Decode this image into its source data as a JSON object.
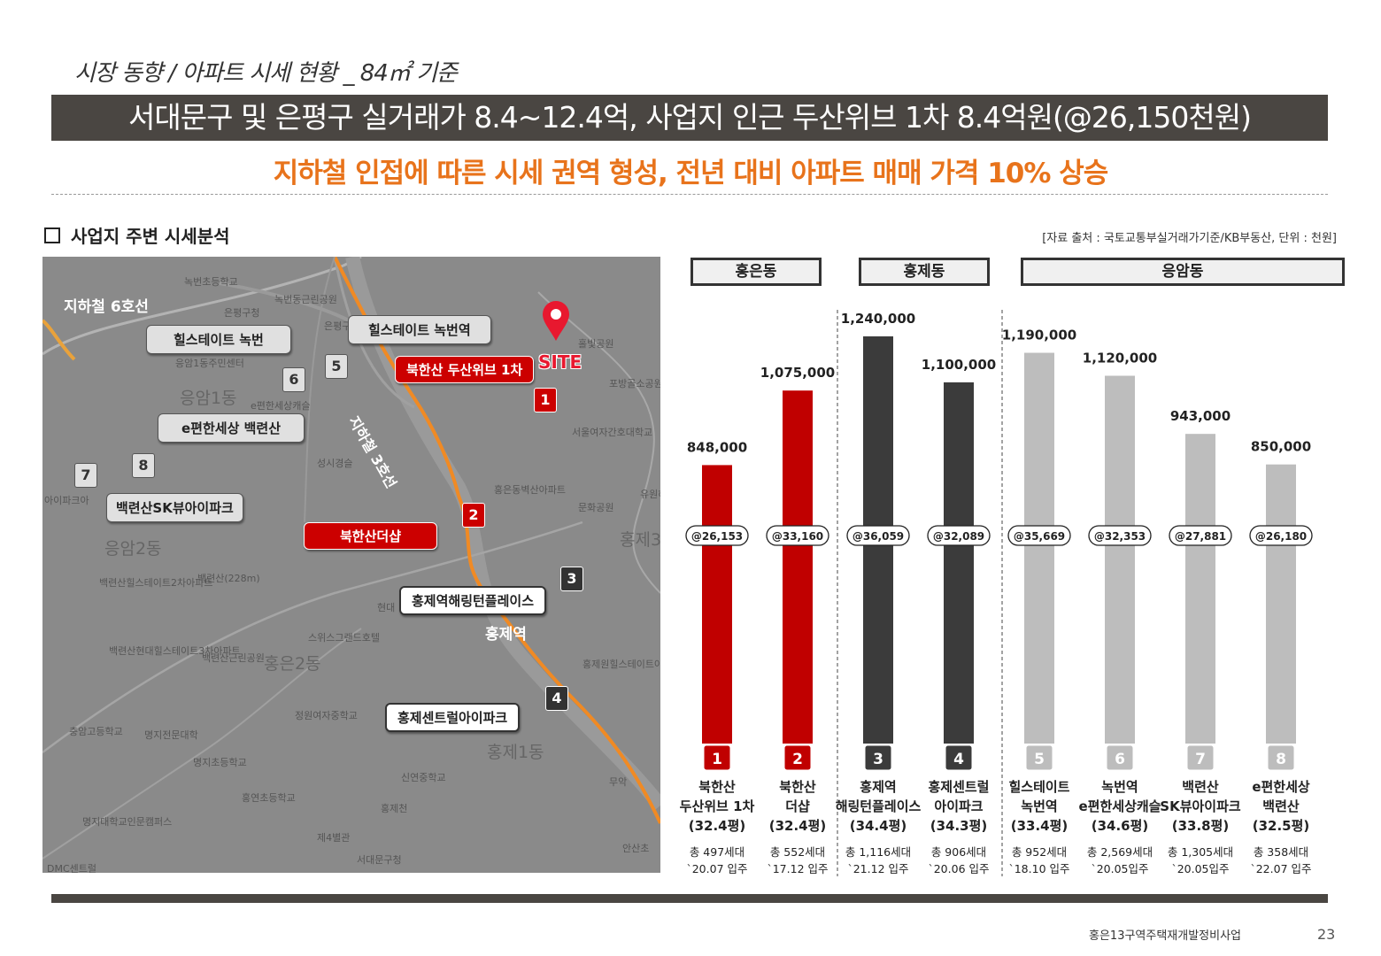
{
  "header": {
    "section": "시장 동향 / 아파트 시세 현황 _ 84㎡ 기준",
    "title": "서대문구 및 은평구 실거래가 8.4~12.4억, 사업지 인근 두산위브 1차 8.4억원(@26,150천원)",
    "subtitle": "지하철 인접에 따른 시세 권역 형성, 전년 대비 아파트 매매 가격 10% 상승"
  },
  "section_heading": "사업지 주변 시세분석",
  "source_note": "[자료 출처 : 국토교통부실거래가기준/KB부동산, 단위 : 천원]",
  "map": {
    "line6": "지하철 6호선",
    "line3": "지하철 3호선",
    "site": "SITE",
    "station": "홍제역",
    "callouts": {
      "c1": "북한산 두산위브 1차",
      "c2": "북한산더샵",
      "c3": "홍제역해링턴플레이스",
      "c4": "홍제센트럴아이파크",
      "c5": "힐스테이트 녹번역",
      "c6": "힐스테이트 녹번",
      "c7": "백련산SK뷰아이파크",
      "c8": "e편한세상 백련산"
    },
    "districts": [
      "응암1동",
      "응암2동",
      "홍은2동",
      "홍제1동",
      "홍제3"
    ],
    "labels": [
      "녹번초등학교",
      "은평구청",
      "녹번동근린공원",
      "은평구청앞",
      "응암1동주민센터",
      "e편한세상캐슬",
      "성시경슬",
      "백련산(228m)",
      "백련산힐스테이트2차아파트",
      "백련산현대힐스테이트3차아파트",
      "백련산근린공원",
      "정원여자중학교",
      "명지전문대학",
      "명지초등학교",
      "홍연초등학교",
      "신연중학교",
      "명지대학교인문캠퍼스",
      "제4별관",
      "서대문구청",
      "DMC센트럴",
      "충암고등학교",
      "스위스그랜드호텔",
      "홍제원힐스테이트아파트",
      "홍은동벽산아파트",
      "문화공원",
      "서울여자간호대학교",
      "포방골소공원",
      "홀빛공원",
      "홍제천",
      "안산초",
      "무악",
      "유원하",
      "아이파크아",
      "현대"
    ]
  },
  "chart_data": {
    "type": "bar",
    "unit": "천원",
    "groups": [
      {
        "name": "홍은동",
        "indices": [
          0,
          1
        ]
      },
      {
        "name": "홍제동",
        "indices": [
          2,
          3
        ]
      },
      {
        "name": "응암동",
        "indices": [
          4,
          5,
          6,
          7
        ]
      }
    ],
    "items": [
      {
        "no": "1",
        "name_lines": [
          "북한산",
          "두산위브 1차"
        ],
        "area": "(32.4평)",
        "households": "총 497세대",
        "move_in": "`20.07 입주",
        "value": 848000,
        "value_label": "848,000",
        "unit_price": "@26,153",
        "color": "#c00000"
      },
      {
        "no": "2",
        "name_lines": [
          "북한산",
          "더샵"
        ],
        "area": "(32.4평)",
        "households": "총 552세대",
        "move_in": "`17.12 입주",
        "value": 1075000,
        "value_label": "1,075,000",
        "unit_price": "@33,160",
        "color": "#c00000"
      },
      {
        "no": "3",
        "name_lines": [
          "홍제역",
          "해링턴플레이스"
        ],
        "area": "(34.4평)",
        "households": "총 1,116세대",
        "move_in": "`21.12 입주",
        "value": 1240000,
        "value_label": "1,240,000",
        "unit_price": "@36,059",
        "color": "#3b3b3b"
      },
      {
        "no": "4",
        "name_lines": [
          "홍제센트럴",
          "아이파크"
        ],
        "area": "(34.3평)",
        "households": "총 906세대",
        "move_in": "`20.06 입주",
        "value": 1100000,
        "value_label": "1,100,000",
        "unit_price": "@32,089",
        "color": "#3b3b3b"
      },
      {
        "no": "5",
        "name_lines": [
          "힐스테이트",
          "녹번역"
        ],
        "area": "(33.4평)",
        "households": "총 952세대",
        "move_in": "`18.10 입주",
        "value": 1190000,
        "value_label": "1,190,000",
        "unit_price": "@35,669",
        "color": "#bdbdbd"
      },
      {
        "no": "6",
        "name_lines": [
          "녹번역",
          "e편한세상캐슬"
        ],
        "area": "(34.6평)",
        "households": "총 2,569세대",
        "move_in": "`20.05입주",
        "value": 1120000,
        "value_label": "1,120,000",
        "unit_price": "@32,353",
        "color": "#bdbdbd"
      },
      {
        "no": "7",
        "name_lines": [
          "백련산",
          "SK뷰아이파크"
        ],
        "area": "(33.8평)",
        "households": "총 1,305세대",
        "move_in": "`20.05입주",
        "value": 943000,
        "value_label": "943,000",
        "unit_price": "@27,881",
        "color": "#bdbdbd"
      },
      {
        "no": "8",
        "name_lines": [
          "e편한세상",
          "백련산"
        ],
        "area": "(32.5평)",
        "households": "총 358세대",
        "move_in": "`22.07 입주",
        "value": 850000,
        "value_label": "850,000",
        "unit_price": "@26,180",
        "color": "#bdbdbd"
      }
    ],
    "ylim": [
      0,
      1240000
    ]
  },
  "footer": {
    "project": "홍은13구역주택재개발정비사업",
    "page": "23"
  }
}
